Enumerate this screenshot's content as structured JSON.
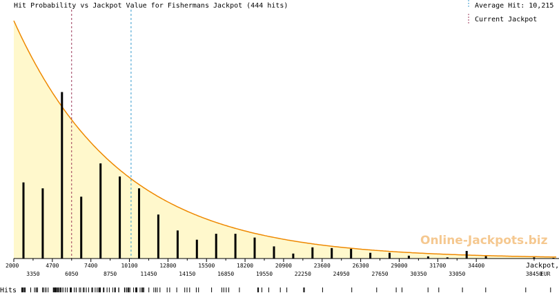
{
  "chart_data": {
    "type": "bar",
    "title": "Hit Probability vs Jackpot Value for Fishermans Jackpot (444 hits)",
    "xlabel": "Jackpot, EUR",
    "xlabel_line1": "Jackpot,",
    "xlabel_line2": "EUR",
    "xlim": [
      2000,
      40000
    ],
    "ylim": [
      0,
      100
    ],
    "legend": [
      {
        "label": "Average Hit: 10,215",
        "value": 10215,
        "color": "#3399cc",
        "style": "dashed"
      },
      {
        "label": "Current Jackpot",
        "value": 6050,
        "color": "#993355",
        "style": "dashed"
      }
    ],
    "x_ticks_upper": [
      2000,
      4700,
      7400,
      10100,
      12800,
      15500,
      18200,
      20900,
      23600,
      26300,
      29000,
      31700,
      34400
    ],
    "x_ticks_lower": [
      3350,
      6050,
      8750,
      11450,
      14150,
      16850,
      19550,
      22250,
      24950,
      27650,
      30350,
      33050,
      38450
    ],
    "bars": {
      "x": [
        2675,
        4025,
        5375,
        6725,
        8075,
        9425,
        10775,
        12125,
        13475,
        14825,
        16175,
        17525,
        18875,
        20225,
        21575,
        22925,
        24275,
        25625,
        26975,
        28325,
        29675,
        31025,
        32375,
        33725,
        35075,
        38450,
        39800
      ],
      "values": [
        32,
        29.5,
        70,
        26,
        40,
        34.5,
        29.5,
        18.5,
        11.8,
        7.9,
        10.4,
        10.4,
        8.8,
        5.1,
        2.1,
        4.7,
        4.4,
        4.1,
        2.4,
        2.4,
        1.2,
        0.9,
        0.5,
        3.2,
        1,
        0.5,
        0.3
      ]
    },
    "curve_color": "#ee8800",
    "fill_color": "#fff8cc",
    "bar_color": "#000000",
    "hits_label": "Hits",
    "watermark": "Online-Jackpots.biz"
  }
}
